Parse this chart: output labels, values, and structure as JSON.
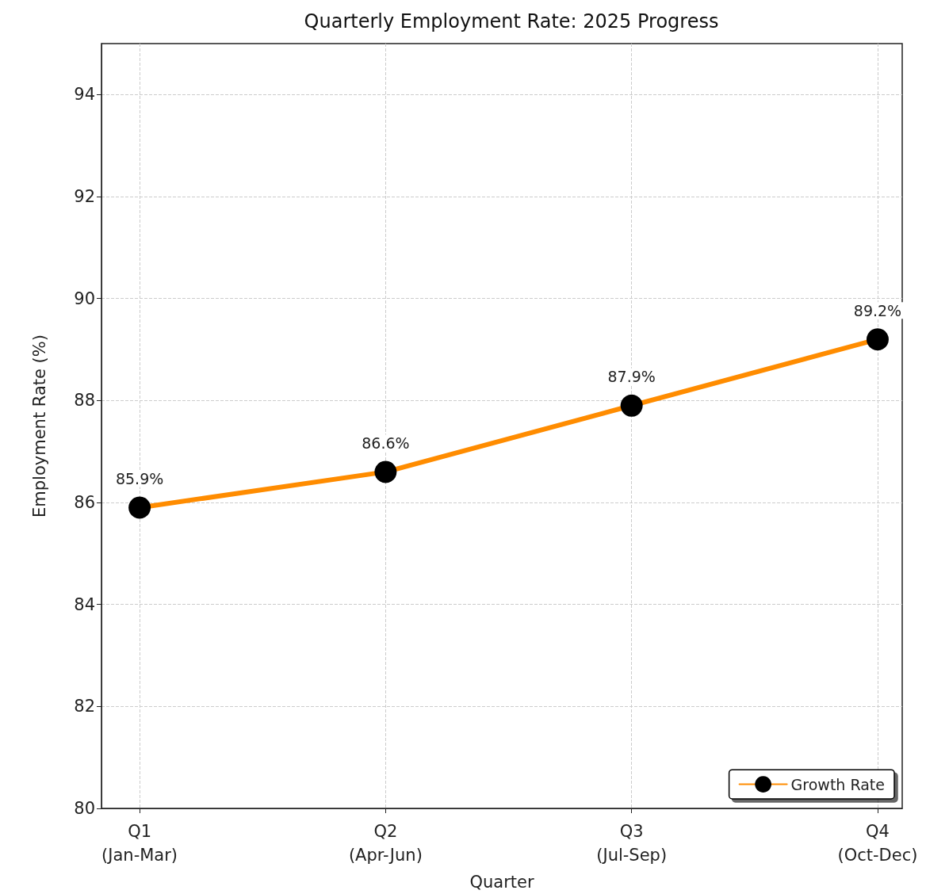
{
  "chart_data": {
    "type": "line",
    "title": "Quarterly Employment Rate: 2025 Progress",
    "xlabel": "Quarter",
    "ylabel": "Employment Rate (%)",
    "categories": [
      "Q1\n(Jan-Mar)",
      "Q2\n(Apr-Jun)",
      "Q3\n(Jul-Sep)",
      "Q4\n(Oct-Dec)"
    ],
    "series": [
      {
        "name": "Growth Rate",
        "color": "#ff8c00",
        "values": [
          85.9,
          86.6,
          87.9,
          89.2
        ]
      }
    ],
    "value_labels": [
      "85.9%",
      "86.6%",
      "87.9%",
      "89.2%"
    ],
    "ylim": [
      80,
      95
    ],
    "yticks": [
      80,
      82,
      84,
      86,
      88,
      90,
      92,
      94
    ],
    "grid": true,
    "legend": "bottom right",
    "marker": "circle",
    "line_style": "solid"
  }
}
